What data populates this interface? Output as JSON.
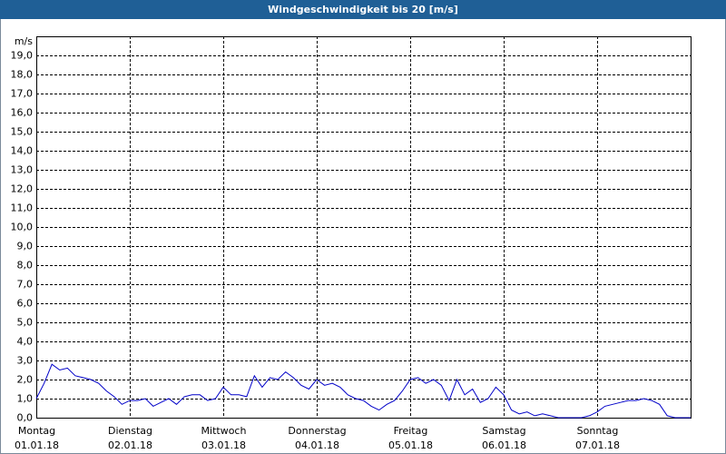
{
  "chart_data": {
    "type": "line",
    "title": "Windgeschwindigkeit bis 20 [m/s]",
    "y_label": "m/s",
    "xlim": [
      0,
      168
    ],
    "xticks": [
      {
        "value": 0,
        "label": "Montag",
        "date": "01.01.18"
      },
      {
        "value": 24,
        "label": "Dienstag",
        "date": "02.01.18"
      },
      {
        "value": 48,
        "label": "Mittwoch",
        "date": "03.01.18"
      },
      {
        "value": 72,
        "label": "Donnerstag",
        "date": "04.01.18"
      },
      {
        "value": 96,
        "label": "Freitag",
        "date": "05.01.18"
      },
      {
        "value": 120,
        "label": "Samstag",
        "date": "06.01.18"
      },
      {
        "value": 144,
        "label": "Sonntag",
        "date": "07.01.18"
      }
    ],
    "ylim": [
      0,
      20
    ],
    "yticks": [
      {
        "value": 0,
        "label": "0,0"
      },
      {
        "value": 1,
        "label": "1,0"
      },
      {
        "value": 2,
        "label": "2,0"
      },
      {
        "value": 3,
        "label": "3,0"
      },
      {
        "value": 4,
        "label": "4,0"
      },
      {
        "value": 5,
        "label": "5,0"
      },
      {
        "value": 6,
        "label": "6,0"
      },
      {
        "value": 7,
        "label": "7,0"
      },
      {
        "value": 8,
        "label": "8,0"
      },
      {
        "value": 9,
        "label": "9,0"
      },
      {
        "value": 10,
        "label": "10,0"
      },
      {
        "value": 11,
        "label": "11,0"
      },
      {
        "value": 12,
        "label": "12,0"
      },
      {
        "value": 13,
        "label": "13,0"
      },
      {
        "value": 14,
        "label": "14,0"
      },
      {
        "value": 15,
        "label": "15,0"
      },
      {
        "value": 16,
        "label": "16,0"
      },
      {
        "value": 17,
        "label": "17,0"
      },
      {
        "value": 18,
        "label": "18,0"
      },
      {
        "value": 19,
        "label": "19,0"
      }
    ],
    "grid": true,
    "color": "#0000c8",
    "x": [
      0,
      2,
      4,
      6,
      8,
      10,
      12,
      14,
      16,
      18,
      20,
      22,
      24,
      26,
      28,
      30,
      32,
      34,
      36,
      38,
      40,
      42,
      44,
      46,
      48,
      50,
      52,
      54,
      56,
      58,
      60,
      62,
      64,
      66,
      68,
      70,
      72,
      74,
      76,
      78,
      80,
      82,
      84,
      86,
      88,
      90,
      92,
      94,
      96,
      98,
      100,
      102,
      104,
      106,
      108,
      110,
      112,
      114,
      116,
      118,
      120,
      122,
      124,
      126,
      128,
      130,
      132,
      134,
      136,
      138,
      140,
      142,
      144,
      146,
      148,
      150,
      152,
      154,
      156,
      158,
      160,
      162,
      164,
      166,
      168
    ],
    "values": [
      1.0,
      1.8,
      2.8,
      2.5,
      2.6,
      2.2,
      2.1,
      2.0,
      1.8,
      1.4,
      1.1,
      0.7,
      0.9,
      0.9,
      1.0,
      0.6,
      0.8,
      1.0,
      0.7,
      1.1,
      1.2,
      1.2,
      0.9,
      1.0,
      1.6,
      1.2,
      1.2,
      1.1,
      2.2,
      1.6,
      2.1,
      2.0,
      2.4,
      2.1,
      1.7,
      1.5,
      2.0,
      1.7,
      1.8,
      1.6,
      1.2,
      1.0,
      0.9,
      0.6,
      0.4,
      0.7,
      0.9,
      1.4,
      2.0,
      2.1,
      1.8,
      2.0,
      1.7,
      0.9,
      2.0,
      1.2,
      1.5,
      0.8,
      1.0,
      1.6,
      1.2,
      0.4,
      0.2,
      0.3,
      0.1,
      0.2,
      0.1,
      0.0,
      0.0,
      0.0,
      0.0,
      0.1,
      0.3,
      0.6,
      0.7,
      0.8,
      0.9,
      0.9,
      1.0,
      0.9,
      0.7,
      0.1,
      0.0,
      0.0,
      0.0
    ]
  }
}
